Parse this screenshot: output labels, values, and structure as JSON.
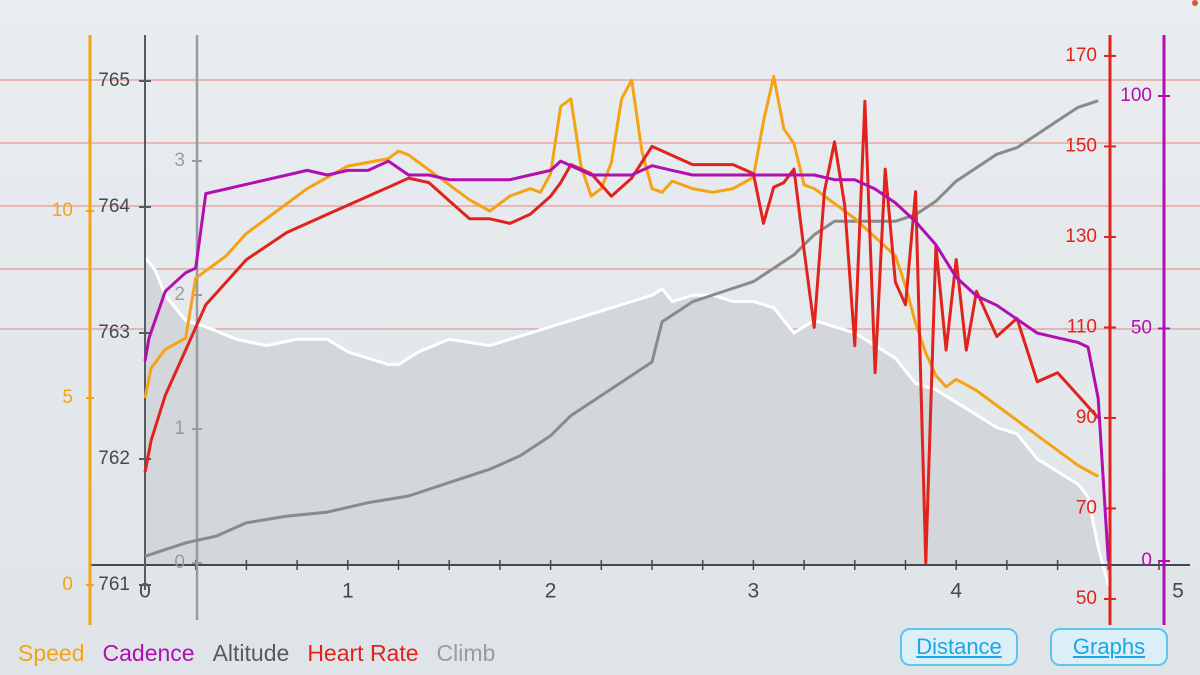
{
  "colors": {
    "speed": "#f5a315",
    "cadence": "#b30eb0",
    "altitude": "#555b63",
    "heart_rate": "#e0231c",
    "climb": "#8a8a8a",
    "background": "#e9edf0",
    "button": "#1aa7e6"
  },
  "legend": [
    "Speed",
    "Cadence",
    "Altitude",
    "Heart Rate",
    "Climb"
  ],
  "buttons": {
    "distance": "Distance",
    "graphs": "Graphs"
  },
  "chart_data": {
    "type": "line",
    "x_ticks": [
      "0",
      "1",
      "2",
      "3",
      "4",
      "5"
    ],
    "xlim": [
      0,
      5
    ],
    "axes": {
      "speed": {
        "ticks": [
          "0",
          "5",
          "10"
        ],
        "ylim": [
          0,
          13
        ]
      },
      "altitude": {
        "ticks": [
          "761",
          "762",
          "763",
          "764",
          "765"
        ],
        "ylim": [
          761,
          765.4
        ]
      },
      "climb": {
        "ticks": [
          "0",
          "1",
          "2",
          "3"
        ],
        "ylim": [
          0,
          3.7
        ]
      },
      "heart_rate": {
        "ticks": [
          "50",
          "70",
          "90",
          "110",
          "130",
          "150",
          "170"
        ],
        "ylim": [
          48,
          172
        ]
      },
      "cadence": {
        "ticks": [
          "0",
          "50",
          "100"
        ],
        "ylim": [
          0,
          106
        ]
      }
    },
    "series": [
      {
        "name": "Altitude",
        "axis": "altitude",
        "fill": true,
        "x": [
          0,
          0.05,
          0.1,
          0.2,
          0.3,
          0.45,
          0.6,
          0.75,
          0.9,
          1.0,
          1.1,
          1.2,
          1.25,
          1.35,
          1.5,
          1.7,
          1.9,
          2.0,
          2.1,
          2.2,
          2.3,
          2.4,
          2.5,
          2.55,
          2.6,
          2.7,
          2.8,
          2.9,
          3.0,
          3.1,
          3.2,
          3.3,
          3.4,
          3.5,
          3.6,
          3.7,
          3.8,
          3.9,
          4.0,
          4.1,
          4.2,
          4.3,
          4.4,
          4.5,
          4.6,
          4.65,
          4.7,
          4.75
        ],
        "y": [
          763.6,
          763.5,
          763.3,
          763.1,
          763.05,
          762.95,
          762.9,
          762.95,
          762.95,
          762.85,
          762.8,
          762.75,
          762.75,
          762.85,
          762.95,
          762.9,
          763.0,
          763.05,
          763.1,
          763.15,
          763.2,
          763.25,
          763.3,
          763.35,
          763.25,
          763.3,
          763.3,
          763.25,
          763.25,
          763.2,
          763.0,
          763.1,
          763.05,
          763.0,
          762.9,
          762.8,
          762.6,
          762.55,
          762.45,
          762.35,
          762.25,
          762.2,
          762.0,
          761.9,
          761.8,
          761.7,
          761.3,
          761.0
        ]
      },
      {
        "name": "Climb",
        "axis": "climb",
        "x": [
          0,
          0.1,
          0.2,
          0.35,
          0.5,
          0.7,
          0.9,
          1.1,
          1.3,
          1.5,
          1.7,
          1.85,
          2.0,
          2.1,
          2.2,
          2.35,
          2.5,
          2.55,
          2.6,
          2.7,
          2.8,
          3.0,
          3.1,
          3.2,
          3.3,
          3.4,
          3.5,
          3.7,
          3.8,
          3.9,
          4.0,
          4.1,
          4.2,
          4.3,
          4.4,
          4.5,
          4.6,
          4.7
        ],
        "y": [
          0.05,
          0.1,
          0.15,
          0.2,
          0.3,
          0.35,
          0.38,
          0.45,
          0.5,
          0.6,
          0.7,
          0.8,
          0.95,
          1.1,
          1.2,
          1.35,
          1.5,
          1.8,
          1.85,
          1.95,
          2.0,
          2.1,
          2.2,
          2.3,
          2.45,
          2.55,
          2.55,
          2.55,
          2.6,
          2.7,
          2.85,
          2.95,
          3.05,
          3.1,
          3.2,
          3.3,
          3.4,
          3.45
        ]
      },
      {
        "name": "Speed",
        "axis": "speed",
        "x": [
          0,
          0.03,
          0.1,
          0.2,
          0.25,
          0.3,
          0.4,
          0.5,
          0.6,
          0.7,
          0.8,
          0.9,
          1.0,
          1.1,
          1.2,
          1.25,
          1.3,
          1.4,
          1.5,
          1.6,
          1.7,
          1.8,
          1.9,
          1.95,
          2.0,
          2.05,
          2.1,
          2.15,
          2.2,
          2.25,
          2.3,
          2.35,
          2.4,
          2.45,
          2.5,
          2.55,
          2.6,
          2.7,
          2.8,
          2.9,
          3.0,
          3.05,
          3.1,
          3.15,
          3.2,
          3.25,
          3.3,
          3.4,
          3.5,
          3.6,
          3.7,
          3.75,
          3.8,
          3.85,
          3.9,
          3.95,
          4.0,
          4.1,
          4.2,
          4.3,
          4.4,
          4.5,
          4.6,
          4.7
        ],
        "y": [
          5.0,
          5.8,
          6.3,
          6.6,
          8.2,
          8.4,
          8.8,
          9.4,
          9.8,
          10.2,
          10.6,
          10.9,
          11.2,
          11.3,
          11.4,
          11.6,
          11.5,
          11.1,
          10.7,
          10.3,
          10.0,
          10.4,
          10.6,
          10.5,
          11.0,
          12.8,
          13.0,
          11.2,
          10.4,
          10.6,
          11.3,
          13.0,
          13.5,
          11.6,
          10.6,
          10.5,
          10.8,
          10.6,
          10.5,
          10.6,
          10.9,
          12.4,
          13.6,
          12.2,
          11.8,
          10.7,
          10.6,
          10.2,
          9.8,
          9.3,
          8.8,
          8.0,
          7.0,
          6.2,
          5.6,
          5.3,
          5.5,
          5.2,
          4.8,
          4.4,
          4.0,
          3.6,
          3.2,
          2.9
        ]
      },
      {
        "name": "Heart Rate",
        "axis": "heart_rate",
        "x": [
          0,
          0.03,
          0.1,
          0.2,
          0.3,
          0.4,
          0.5,
          0.6,
          0.7,
          0.8,
          0.9,
          1.0,
          1.1,
          1.2,
          1.3,
          1.4,
          1.5,
          1.6,
          1.7,
          1.8,
          1.9,
          2.0,
          2.05,
          2.1,
          2.2,
          2.3,
          2.4,
          2.5,
          2.6,
          2.7,
          2.8,
          2.9,
          3.0,
          3.05,
          3.1,
          3.15,
          3.2,
          3.25,
          3.3,
          3.35,
          3.4,
          3.45,
          3.5,
          3.55,
          3.6,
          3.65,
          3.7,
          3.75,
          3.8,
          3.85,
          3.9,
          3.95,
          4.0,
          4.05,
          4.1,
          4.2,
          4.3,
          4.4,
          4.5,
          4.6,
          4.7
        ],
        "y": [
          78,
          85,
          95,
          105,
          115,
          120,
          125,
          128,
          131,
          133,
          135,
          137,
          139,
          141,
          143,
          142,
          138,
          134,
          134,
          133,
          135,
          139,
          142,
          146,
          144,
          139,
          143,
          150,
          148,
          146,
          146,
          146,
          144,
          133,
          141,
          142,
          145,
          127,
          110,
          140,
          151,
          137,
          106,
          160,
          100,
          145,
          120,
          115,
          140,
          58,
          128,
          105,
          125,
          105,
          118,
          108,
          112,
          98,
          100,
          95,
          90
        ]
      },
      {
        "name": "Cadence",
        "axis": "cadence",
        "x": [
          0,
          0.02,
          0.1,
          0.2,
          0.25,
          0.3,
          0.4,
          0.5,
          0.6,
          0.7,
          0.8,
          0.9,
          1.0,
          1.1,
          1.2,
          1.3,
          1.4,
          1.5,
          1.6,
          1.7,
          1.8,
          1.9,
          2.0,
          2.05,
          2.1,
          2.2,
          2.3,
          2.4,
          2.5,
          2.6,
          2.7,
          2.8,
          2.9,
          3.0,
          3.1,
          3.2,
          3.3,
          3.4,
          3.5,
          3.6,
          3.7,
          3.8,
          3.9,
          4.0,
          4.1,
          4.2,
          4.3,
          4.4,
          4.5,
          4.6,
          4.65,
          4.7,
          4.75
        ],
        "y": [
          43,
          48,
          58,
          62,
          63,
          79,
          80,
          81,
          82,
          83,
          84,
          83,
          84,
          84,
          86,
          83,
          83,
          82,
          82,
          82,
          82,
          83,
          84,
          86,
          85,
          83,
          83,
          83,
          85,
          84,
          83,
          83,
          83,
          83,
          83,
          83,
          83,
          82,
          82,
          80,
          77,
          73,
          68,
          61,
          57,
          55,
          52,
          49,
          48,
          47,
          46,
          35,
          0
        ]
      }
    ]
  }
}
